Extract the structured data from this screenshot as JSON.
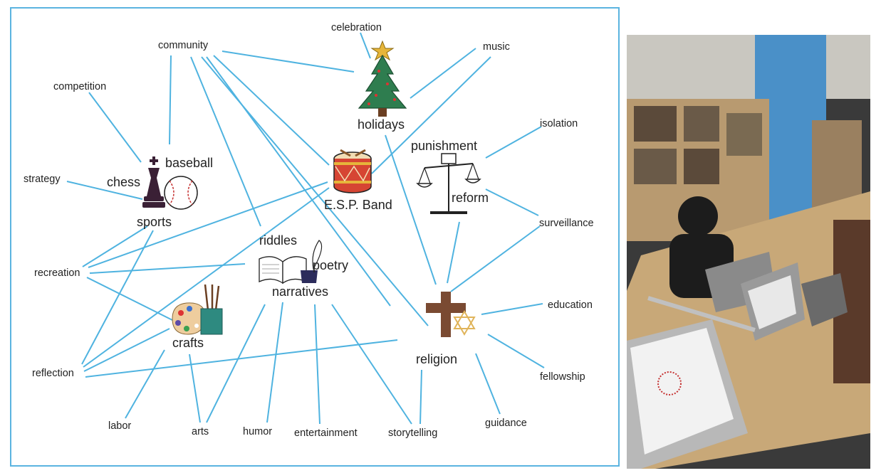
{
  "diagram": {
    "hubs": {
      "holidays": "holidays",
      "band": "E.S.P. Band",
      "punishment": "punishment",
      "reform": "reform",
      "chess": "chess",
      "baseball": "baseball",
      "sports": "sports",
      "riddles": "riddles",
      "poetry": "poetry",
      "narratives": "narratives",
      "crafts": "crafts",
      "religion": "religion"
    },
    "terms": {
      "celebration": "celebration",
      "community": "community",
      "music": "music",
      "competition": "competition",
      "isolation": "isolation",
      "strategy": "strategy",
      "surveillance": "surveillance",
      "recreation": "recreation",
      "education": "education",
      "reflection": "reflection",
      "fellowship": "fellowship",
      "labor": "labor",
      "arts": "arts",
      "humor": "humor",
      "entertainment": "entertainment",
      "storytelling": "storytelling",
      "guidance": "guidance"
    },
    "colors": {
      "edge": "#4fb3e0",
      "frame": "#5bb4e0"
    }
  },
  "photo": {
    "subject": "classroom-photo"
  }
}
